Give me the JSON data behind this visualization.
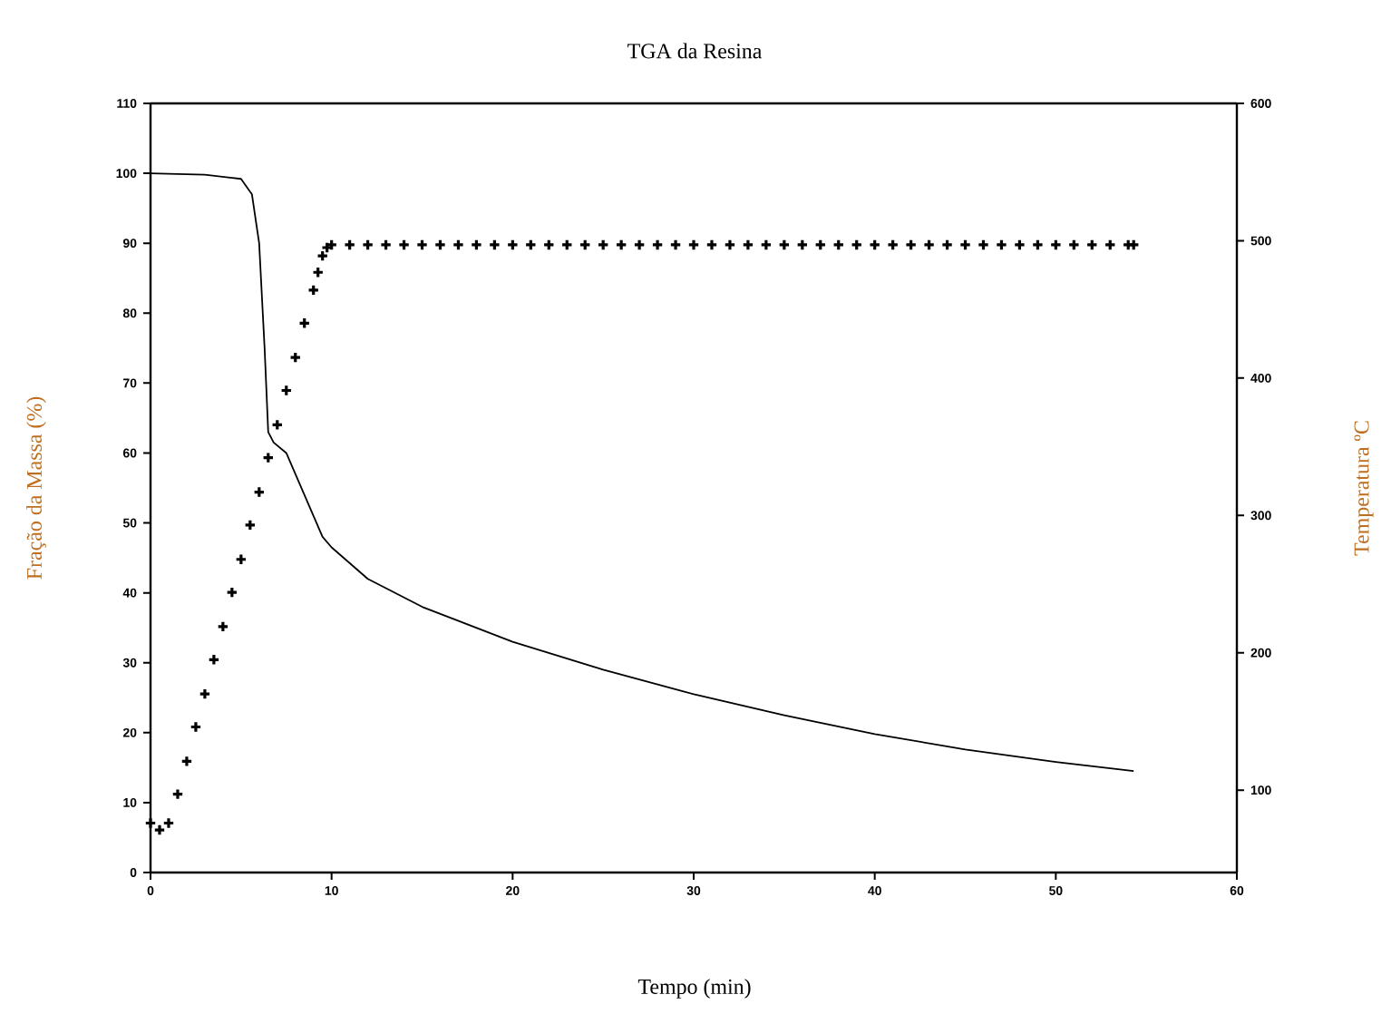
{
  "chart_data": {
    "type": "line",
    "title": "TGA da Resina",
    "xlabel": "Tempo (min)",
    "ylabel": "Fração da Massa (%)",
    "y2label": "Temperatura ºC",
    "xlim": [
      0,
      60
    ],
    "xticks": [
      0,
      10,
      20,
      30,
      40,
      50,
      60
    ],
    "ylim": [
      0,
      110
    ],
    "yticks": [
      0,
      10,
      20,
      30,
      40,
      50,
      60,
      70,
      80,
      90,
      100,
      110
    ],
    "y2lim": [
      40,
      600
    ],
    "y2ticks": [
      100,
      200,
      300,
      400,
      500,
      600
    ],
    "series": [
      {
        "color": "#000000",
        "marker": "none",
        "line_style": "solid",
        "x": [
          0,
          3,
          5,
          5.6,
          6,
          6.3,
          6.5,
          6.8,
          7.5,
          8.5,
          9.5,
          10,
          12,
          15,
          20,
          25,
          30,
          35,
          40,
          45,
          50,
          54.3
        ],
        "values": [
          100,
          99.8,
          99.2,
          97,
          90,
          75,
          63,
          61.5,
          60,
          54,
          48,
          46.5,
          42,
          38,
          33,
          29,
          25.5,
          22.5,
          19.8,
          17.6,
          15.8,
          14.5
        ]
      },
      {
        "color": "#000000",
        "marker": "cross",
        "axis": "y2",
        "type": "scatter",
        "x": [
          0,
          0.5,
          1,
          1.5,
          2,
          2.5,
          3,
          3.5,
          4,
          4.5,
          5,
          5.5,
          6,
          6.5,
          7,
          7.5,
          8,
          8.5,
          9,
          9.25,
          9.5,
          9.75,
          10,
          11,
          12,
          13,
          14,
          15,
          16,
          17,
          18,
          19,
          20,
          21,
          22,
          23,
          24,
          25,
          26,
          27,
          28,
          29,
          30,
          31,
          32,
          33,
          34,
          35,
          36,
          37,
          38,
          39,
          40,
          41,
          42,
          43,
          44,
          45,
          46,
          47,
          48,
          49,
          50,
          51,
          52,
          53,
          54,
          54.3
        ],
        "values": [
          76,
          71,
          76,
          97,
          121,
          146,
          170,
          195,
          219,
          244,
          268,
          293,
          317,
          342,
          366,
          391,
          415,
          440,
          464,
          477,
          489,
          495,
          497,
          497,
          497,
          497,
          497,
          497,
          497,
          497,
          497,
          497,
          497,
          497,
          497,
          497,
          497,
          497,
          497,
          497,
          497,
          497,
          497,
          497,
          497,
          497,
          497,
          497,
          497,
          497,
          497,
          497,
          497,
          497,
          497,
          497,
          497,
          497,
          497,
          497,
          497,
          497,
          497,
          497,
          497,
          497,
          497,
          497
        ]
      }
    ]
  }
}
